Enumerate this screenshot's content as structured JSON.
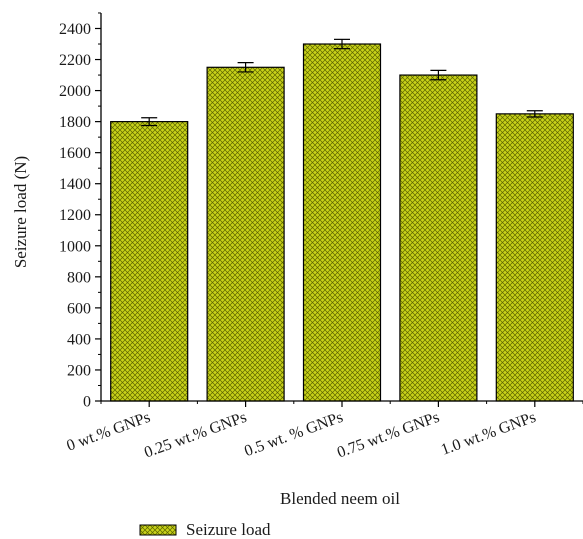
{
  "chart_data": {
    "type": "bar",
    "title": "",
    "xlabel": "Blended neem oil",
    "ylabel": "Seizure load (N)",
    "categories": [
      "0 wt.% GNPs",
      "0.25 wt.% GNPs",
      "0.5 wt. % GNPs",
      "0.75 wt.% GNPs",
      "1.0 wt.% GNPs"
    ],
    "series": [
      {
        "name": "Seizure load",
        "values": [
          1800,
          2150,
          2300,
          2100,
          1850
        ],
        "errors": [
          25,
          30,
          30,
          30,
          20
        ],
        "color": "#c8d219",
        "hatch": "crosshatch"
      }
    ],
    "ylim": [
      0,
      2500
    ],
    "yticks": [
      0,
      200,
      400,
      600,
      800,
      1000,
      1200,
      1400,
      1600,
      1800,
      2000,
      2200,
      2400
    ],
    "grid": false,
    "legend": "bottom-left"
  }
}
